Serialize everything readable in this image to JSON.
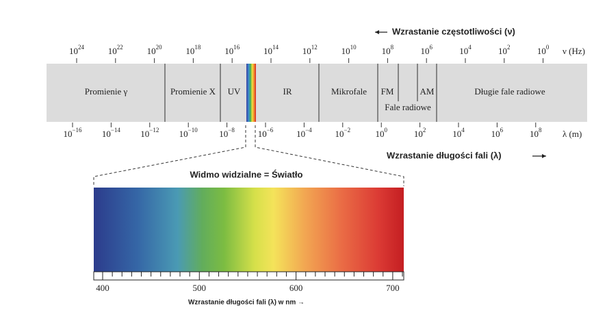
{
  "frequency_axis": {
    "title": "Wzrastanie częstotliwości (ν)",
    "unit": "ν (Hz)",
    "base": "10",
    "exponents": [
      "24",
      "22",
      "20",
      "18",
      "16",
      "14",
      "12",
      "10",
      "8",
      "6",
      "4",
      "2",
      "0"
    ]
  },
  "wavelength_axis": {
    "title": "Wzrastanie długości fali (λ)",
    "unit": "λ (m)",
    "base": "10",
    "exponents": [
      "−16",
      "−14",
      "−12",
      "−10",
      "−8",
      "−6",
      "−4",
      "−2",
      "0",
      "2",
      "4",
      "6",
      "8"
    ]
  },
  "bands": [
    "Promienie γ",
    "Promienie X",
    "UV",
    "IR",
    "Mikrofale",
    "FM",
    "Fale radiowe",
    "AM",
    "Długie fale radiowe"
  ],
  "visible": {
    "title": "Widmo widzialne = Światło",
    "ticks": [
      "400",
      "500",
      "600",
      "700"
    ],
    "caption": "Wzrastanie długości fali (λ) w nm →"
  }
}
